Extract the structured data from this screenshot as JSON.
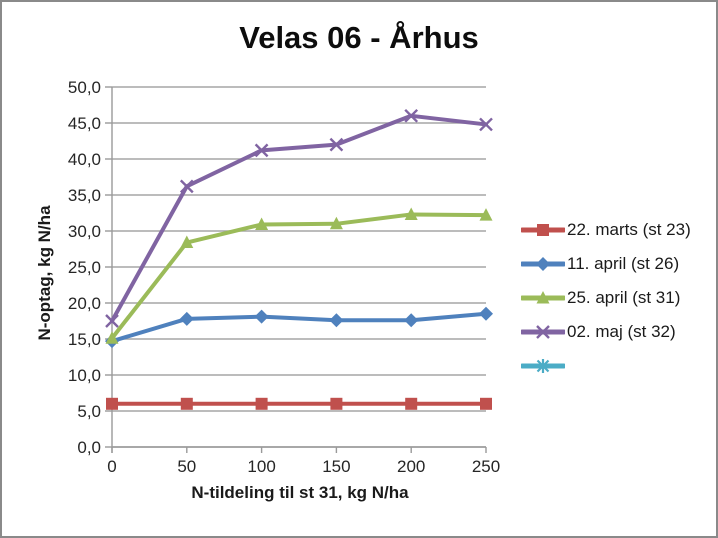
{
  "window": {
    "background_color": "#ffffff",
    "border_color": "#8a8a8a"
  },
  "chart_data": {
    "type": "line",
    "title": "Velas 06 - Århus",
    "xlabel": "N-tildeling til st 31, kg N/ha",
    "ylabel": "N-optag, kg N/ha",
    "x": [
      0,
      50,
      100,
      150,
      200,
      250
    ],
    "x_tick_labels": [
      "0",
      "50",
      "100",
      "150",
      "200",
      "250"
    ],
    "y_tick_labels": [
      "0,0",
      "5,0",
      "10,0",
      "15,0",
      "20,0",
      "25,0",
      "30,0",
      "35,0",
      "40,0",
      "45,0",
      "50,0"
    ],
    "ylim": [
      0,
      50
    ],
    "y_step": 5,
    "grid": "horizontal",
    "legend_position": "right",
    "colors": {
      "gridline": "#a6a6a6",
      "axis": "#9a9a9a",
      "tick_label": "#262626"
    },
    "series": [
      {
        "name": "22. marts (st 23)",
        "color": "#c0504d",
        "marker": "square",
        "values": [
          6.0,
          6.0,
          6.0,
          6.0,
          6.0,
          6.0
        ]
      },
      {
        "name": "11. april (st 26)",
        "color": "#4f81bd",
        "marker": "diamond",
        "values": [
          14.7,
          17.8,
          18.1,
          17.6,
          17.6,
          18.5
        ]
      },
      {
        "name": "25. april (st 31)",
        "color": "#9bbb59",
        "marker": "triangle",
        "values": [
          15.1,
          28.4,
          30.9,
          31.0,
          32.3,
          32.2
        ]
      },
      {
        "name": "02. maj (st 32)",
        "color": "#8064a2",
        "marker": "x",
        "values": [
          17.5,
          36.2,
          41.2,
          42.0,
          46.0,
          44.8
        ]
      },
      {
        "name": "",
        "color": "#4bacc6",
        "marker": "asterisk",
        "values": []
      }
    ]
  }
}
